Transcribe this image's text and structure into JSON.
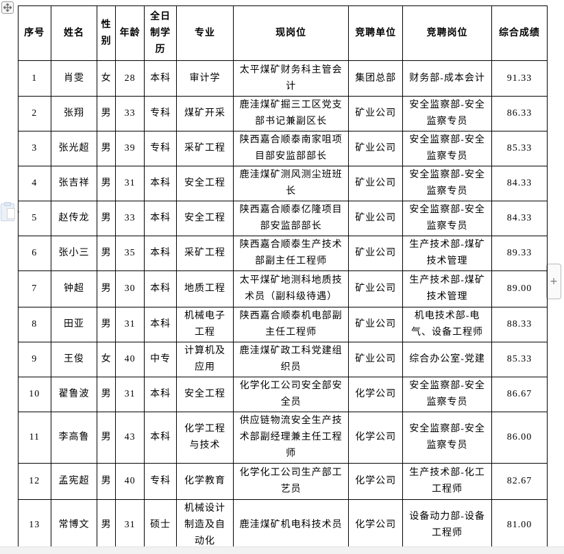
{
  "controls": {
    "move_handle_icon": "table-move-handle",
    "paste_icon": "paste-options",
    "paste_arrow": "▾",
    "add_button_label": "+"
  },
  "colors": {
    "table_border": "#000000",
    "page_background": "#ffffff",
    "chrome_strip": "#f2f2f2"
  },
  "table": {
    "columns": [
      "序号",
      "姓名",
      "性别",
      "年龄",
      "全日制学历",
      "专业",
      "现岗位",
      "竞聘单位",
      "竞聘岗位",
      "综合成绩"
    ],
    "rows": [
      [
        "1",
        "肖雯",
        "女",
        "28",
        "本科",
        "审计学",
        "太平煤矿财务科主管会计",
        "集团总部",
        "财务部-成本会计",
        "91.33"
      ],
      [
        "2",
        "张翔",
        "男",
        "33",
        "专科",
        "煤矿开采",
        "鹿洼煤矿掘三工区党支部书记兼副区长",
        "矿业公司",
        "安全监察部-安全监察专员",
        "86.33"
      ],
      [
        "3",
        "张光超",
        "男",
        "39",
        "专科",
        "采矿工程",
        "陕西嘉合顺泰南家咀项目部安监部部长",
        "矿业公司",
        "安全监察部-安全监察专员",
        "85.33"
      ],
      [
        "4",
        "张吉祥",
        "男",
        "31",
        "本科",
        "安全工程",
        "鹿洼煤矿测风测尘班班长",
        "矿业公司",
        "安全监察部-安全监察专员",
        "84.33"
      ],
      [
        "5",
        "赵传龙",
        "男",
        "33",
        "本科",
        "安全工程",
        "陕西嘉合顺泰亿隆项目部安监部部长",
        "矿业公司",
        "安全监察部-安全监察专员",
        "84.33"
      ],
      [
        "6",
        "张小三",
        "男",
        "35",
        "本科",
        "采矿工程",
        "陕西嘉合顺泰生产技术部副主任工程师",
        "矿业公司",
        "生产技术部-煤矿技术管理",
        "89.33"
      ],
      [
        "7",
        "钟超",
        "男",
        "30",
        "本科",
        "地质工程",
        "太平煤矿地测科地质技术员（副科级待遇）",
        "矿业公司",
        "生产技术部-煤矿技术管理",
        "89.00"
      ],
      [
        "8",
        "田亚",
        "男",
        "31",
        "本科",
        "机械电子工程",
        "陕西嘉合顺泰机电部副主任工程师",
        "矿业公司",
        "机电技术部-电气、设备工程师",
        "88.33"
      ],
      [
        "9",
        "王俊",
        "女",
        "40",
        "中专",
        "计算机及应用",
        "鹿洼煤矿政工科党建组织员",
        "矿业公司",
        "综合办公室-党建",
        "85.33"
      ],
      [
        "10",
        "翟鲁波",
        "男",
        "31",
        "本科",
        "安全工程",
        "化学化工公司安全部安全员",
        "化学公司",
        "安全监察部-安全监察专员",
        "86.67"
      ],
      [
        "11",
        "李高鲁",
        "男",
        "43",
        "本科",
        "化学工程与技术",
        "供应链物流安全生产技术部副经理兼主任工程师",
        "化学公司",
        "安全监察部-安全监察专员",
        "86.00"
      ],
      [
        "12",
        "孟宪超",
        "男",
        "40",
        "专科",
        "化学教育",
        "化学化工公司生产部工艺员",
        "化学公司",
        "生产技术部-化工工程师",
        "82.67"
      ],
      [
        "13",
        "常博文",
        "男",
        "31",
        "硕士",
        "机械设计制造及自动化",
        "鹿洼煤矿机电科技术员",
        "化学公司",
        "设备动力部-设备工程师",
        "81.00"
      ]
    ]
  }
}
